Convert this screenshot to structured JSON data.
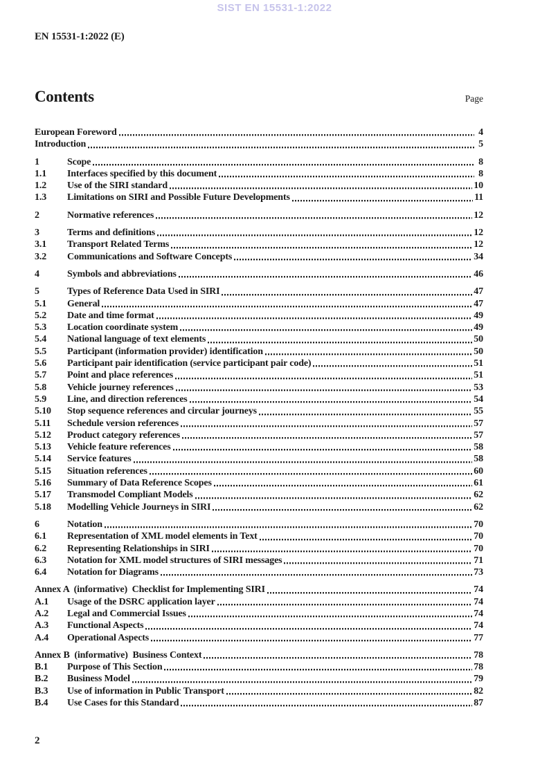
{
  "watermark_text": "SIST EN 15531-1:2022",
  "header": {
    "doc_ref": "EN 15531-1:2022 (E)"
  },
  "contents": {
    "title": "Contents",
    "page_column_label": "Page"
  },
  "toc_entries": [
    {
      "num": "",
      "title": "European Foreword",
      "page": "4",
      "gap": false
    },
    {
      "num": "",
      "title": "Introduction",
      "page": "5",
      "gap": false
    },
    {
      "num": "1",
      "title": "Scope",
      "page": "8",
      "gap": true
    },
    {
      "num": "1.1",
      "title": "Interfaces specified by this document",
      "page": "8",
      "gap": false
    },
    {
      "num": "1.2",
      "title": "Use of the SIRI standard",
      "page": "10",
      "gap": false
    },
    {
      "num": "1.3",
      "title": "Limitations on SIRI and Possible Future Developments",
      "page": "11",
      "gap": false
    },
    {
      "num": "2",
      "title": "Normative references",
      "page": "12",
      "gap": true
    },
    {
      "num": "3",
      "title": "Terms and definitions",
      "page": "12",
      "gap": true
    },
    {
      "num": "3.1",
      "title": "Transport Related Terms",
      "page": "12",
      "gap": false
    },
    {
      "num": "3.2",
      "title": "Communications and Software Concepts",
      "page": "34",
      "gap": false
    },
    {
      "num": "4",
      "title": "Symbols and abbreviations",
      "page": "46",
      "gap": true
    },
    {
      "num": "5",
      "title": "Types of Reference Data Used in SIRI",
      "page": "47",
      "gap": true
    },
    {
      "num": "5.1",
      "title": "General",
      "page": "47",
      "gap": false
    },
    {
      "num": "5.2",
      "title": "Date and time format",
      "page": "49",
      "gap": false
    },
    {
      "num": "5.3",
      "title": "Location coordinate system",
      "page": "49",
      "gap": false
    },
    {
      "num": "5.4",
      "title": "National language of text elements",
      "page": "50",
      "gap": false
    },
    {
      "num": "5.5",
      "title": "Participant (information provider) identification",
      "page": "50",
      "gap": false
    },
    {
      "num": "5.6",
      "title": "Participant pair identification (service participant pair code)",
      "page": "51",
      "gap": false
    },
    {
      "num": "5.7",
      "title": "Point and place references",
      "page": "51",
      "gap": false
    },
    {
      "num": "5.8",
      "title": "Vehicle journey references",
      "page": "53",
      "gap": false
    },
    {
      "num": "5.9",
      "title": "Line, and direction references",
      "page": "54",
      "gap": false
    },
    {
      "num": "5.10",
      "title": "Stop sequence references and circular journeys",
      "page": "55",
      "gap": false
    },
    {
      "num": "5.11",
      "title": "Schedule version references",
      "page": "57",
      "gap": false
    },
    {
      "num": "5.12",
      "title": "Product category references",
      "page": "57",
      "gap": false
    },
    {
      "num": "5.13",
      "title": "Vehicle feature references",
      "page": "58",
      "gap": false
    },
    {
      "num": "5.14",
      "title": "Service features",
      "page": "58",
      "gap": false
    },
    {
      "num": "5.15",
      "title": "Situation references",
      "page": "60",
      "gap": false
    },
    {
      "num": "5.16",
      "title": "Summary of Data Reference Scopes",
      "page": "61",
      "gap": false
    },
    {
      "num": "5.17",
      "title": "Transmodel Compliant Models",
      "page": "62",
      "gap": false
    },
    {
      "num": "5.18",
      "title": "Modelling Vehicle Journeys in SIRI",
      "page": "62",
      "gap": false
    },
    {
      "num": "6",
      "title": "Notation",
      "page": "70",
      "gap": true
    },
    {
      "num": "6.1",
      "title": "Representation of XML model elements in Text",
      "page": "70",
      "gap": false
    },
    {
      "num": "6.2",
      "title": "Representing Relationships in SIRI",
      "page": "70",
      "gap": false
    },
    {
      "num": "6.3",
      "title": "Notation for XML model structures of SIRI messages",
      "page": "71",
      "gap": false
    },
    {
      "num": "6.4",
      "title": "Notation for Diagrams",
      "page": "73",
      "gap": false
    },
    {
      "num": "",
      "title": "Annex A  (informative)  Checklist for Implementing SIRI",
      "page": "74",
      "gap": true
    },
    {
      "num": "A.1",
      "title": "Usage of the DSRC application layer",
      "page": "74",
      "gap": false
    },
    {
      "num": "A.2",
      "title": "Legal and Commercial Issues",
      "page": "74",
      "gap": false
    },
    {
      "num": "A.3",
      "title": "Functional Aspects",
      "page": "74",
      "gap": false
    },
    {
      "num": "A.4",
      "title": "Operational Aspects",
      "page": "77",
      "gap": false
    },
    {
      "num": "",
      "title": "Annex B  (informative)  Business Context",
      "page": "78",
      "gap": true
    },
    {
      "num": "B.1",
      "title": "Purpose of This Section",
      "page": "78",
      "gap": false
    },
    {
      "num": "B.2",
      "title": "Business Model",
      "page": "79",
      "gap": false
    },
    {
      "num": "B.3",
      "title": "Use of information in Public Transport",
      "page": "82",
      "gap": false
    },
    {
      "num": "B.4",
      "title": "Use Cases for this Standard",
      "page": "87",
      "gap": false
    }
  ],
  "footer": {
    "page_number": "2"
  },
  "colors": {
    "watermark": "#c6c3eb",
    "text": "#1a1a1a",
    "background": "#ffffff"
  }
}
